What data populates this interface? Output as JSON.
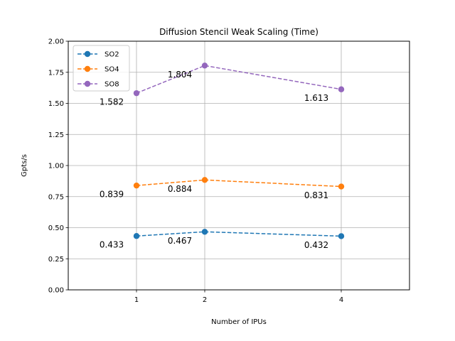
{
  "chart_data": {
    "type": "line",
    "title": "Diffusion Stencil Weak Scaling (Time)",
    "xlabel": "Number of IPUs",
    "ylabel": "Gpts/s",
    "x": [
      1,
      2,
      4
    ],
    "xlim": [
      0,
      5
    ],
    "ylim": [
      0,
      2.0
    ],
    "yticks": [
      "0.00",
      "0.25",
      "0.50",
      "0.75",
      "1.00",
      "1.25",
      "1.50",
      "1.75",
      "2.00"
    ],
    "xticks": [
      "1",
      "2",
      "4"
    ],
    "grid": true,
    "legend_position": "top-left",
    "series": [
      {
        "name": "SO2",
        "color": "#1f77b4",
        "values": [
          0.433,
          0.467,
          0.432
        ],
        "labels": [
          "0.433",
          "0.467",
          "0.432"
        ]
      },
      {
        "name": "SO4",
        "color": "#ff7f0e",
        "values": [
          0.839,
          0.884,
          0.831
        ],
        "labels": [
          "0.839",
          "0.884",
          "0.831"
        ]
      },
      {
        "name": "SO8",
        "color": "#9467bd",
        "values": [
          1.582,
          1.804,
          1.613
        ],
        "labels": [
          "1.582",
          "1.804",
          "1.613"
        ]
      }
    ]
  }
}
